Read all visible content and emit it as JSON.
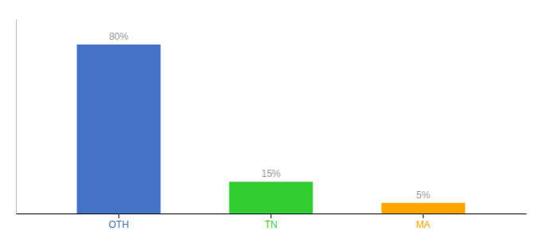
{
  "chart_data": {
    "type": "bar",
    "categories": [
      "OTH",
      "TN",
      "MA"
    ],
    "values": [
      80,
      15,
      5
    ],
    "value_labels": [
      "80%",
      "15%",
      "5%"
    ],
    "colors": [
      "#4472C4",
      "#33CC33",
      "#FFA500"
    ],
    "ylim": [
      0,
      92
    ],
    "data_labels": true,
    "tick_labels": "x",
    "grid": false
  }
}
